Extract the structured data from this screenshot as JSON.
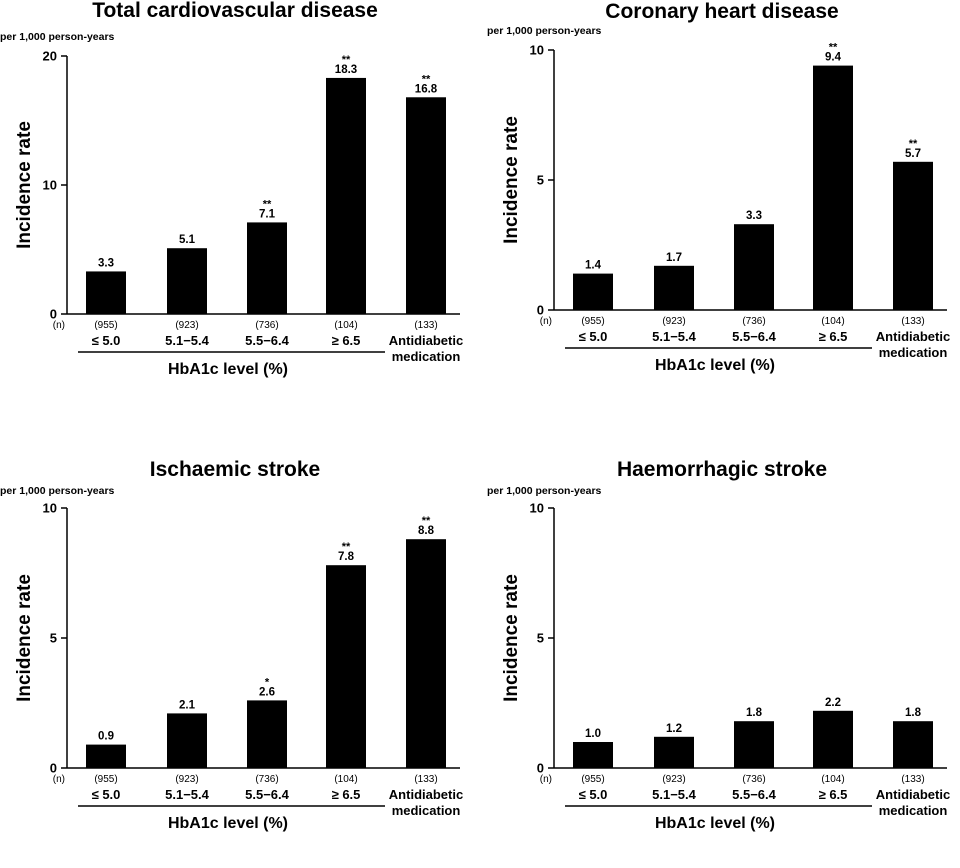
{
  "chart_data": [
    {
      "type": "bar",
      "title": "Total cardiovascular disease",
      "unit_label": "per 1,000 person-years",
      "ylabel": "Incidence rate",
      "xlabel": "HbA1c level (%)",
      "ylim": [
        0,
        20
      ],
      "yticks": [
        "0",
        "10",
        "20"
      ],
      "n_marker": "(n)",
      "categories": [
        "≤ 5.0",
        "5.1−5.4",
        "5.5−6.4",
        "≥ 6.5",
        "Antidiabetic medication"
      ],
      "n_values": [
        "(955)",
        "(923)",
        "(736)",
        "(104)",
        "(133)"
      ],
      "values": [
        3.3,
        5.1,
        7.1,
        18.3,
        16.8
      ],
      "value_labels": [
        "3.3",
        "5.1",
        "7.1",
        "18.3",
        "16.8"
      ],
      "significance": [
        "",
        "",
        "**",
        "**",
        "**"
      ]
    },
    {
      "type": "bar",
      "title": "Coronary heart disease",
      "unit_label": "per 1,000 person-years",
      "ylabel": "Incidence rate",
      "xlabel": "HbA1c level (%)",
      "ylim": [
        0,
        10
      ],
      "yticks": [
        "0",
        "5",
        "10"
      ],
      "n_marker": "(n)",
      "categories": [
        "≤ 5.0",
        "5.1−5.4",
        "5.5−6.4",
        "≥ 6.5",
        "Antidiabetic medication"
      ],
      "n_values": [
        "(955)",
        "(923)",
        "(736)",
        "(104)",
        "(133)"
      ],
      "values": [
        1.4,
        1.7,
        3.3,
        9.4,
        5.7
      ],
      "value_labels": [
        "1.4",
        "1.7",
        "3.3",
        "9.4",
        "5.7"
      ],
      "significance": [
        "",
        "",
        "",
        "**",
        "**"
      ]
    },
    {
      "type": "bar",
      "title": "Ischaemic stroke",
      "unit_label": "per 1,000 person-years",
      "ylabel": "Incidence rate",
      "xlabel": "HbA1c level (%)",
      "ylim": [
        0,
        10
      ],
      "yticks": [
        "0",
        "5",
        "10"
      ],
      "n_marker": "(n)",
      "categories": [
        "≤ 5.0",
        "5.1−5.4",
        "5.5−6.4",
        "≥ 6.5",
        "Antidiabetic medication"
      ],
      "n_values": [
        "(955)",
        "(923)",
        "(736)",
        "(104)",
        "(133)"
      ],
      "values": [
        0.9,
        2.1,
        2.6,
        7.8,
        8.8
      ],
      "value_labels": [
        "0.9",
        "2.1",
        "2.6",
        "7.8",
        "8.8"
      ],
      "significance": [
        "",
        "",
        "*",
        "**",
        "**"
      ]
    },
    {
      "type": "bar",
      "title": "Haemorrhagic stroke",
      "unit_label": "per 1,000 person-years",
      "ylabel": "Incidence rate",
      "xlabel": "HbA1c level (%)",
      "ylim": [
        0,
        10
      ],
      "yticks": [
        "0",
        "5",
        "10"
      ],
      "n_marker": "(n)",
      "categories": [
        "≤ 5.0",
        "5.1−5.4",
        "5.5−6.4",
        "≥ 6.5",
        "Antidiabetic medication"
      ],
      "n_values": [
        "(955)",
        "(923)",
        "(736)",
        "(104)",
        "(133)"
      ],
      "values": [
        1.0,
        1.2,
        1.8,
        2.2,
        1.8
      ],
      "value_labels": [
        "1.0",
        "1.2",
        "1.8",
        "2.2",
        "1.8"
      ],
      "significance": [
        "",
        "",
        "",
        "",
        ""
      ]
    }
  ]
}
